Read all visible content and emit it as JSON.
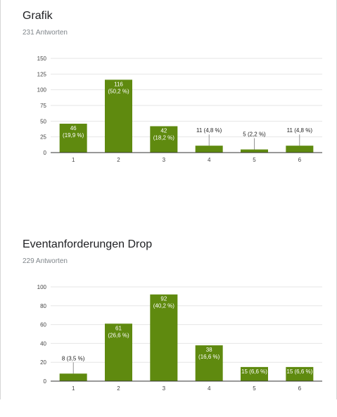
{
  "questions": [
    {
      "title": "Grafik",
      "responses": "231 Antworten"
    },
    {
      "title": "Eventanforderungen Drop",
      "responses": "229 Antworten"
    }
  ],
  "colors": {
    "bar": "#5f8a0f",
    "grid": "#e6e6e6",
    "axis": "#333333",
    "tick": "#444444",
    "label_inside": "#ffffff",
    "label_outside": "#222222"
  },
  "chart_data": [
    {
      "type": "bar",
      "title": "Grafik",
      "categories": [
        "1",
        "2",
        "3",
        "4",
        "5",
        "6"
      ],
      "values": [
        46,
        116,
        42,
        11,
        5,
        11
      ],
      "data_labels": [
        "46\n(19,9 %)",
        "116\n(50,2 %)",
        "42\n(18,2 %)",
        "11 (4,8 %)",
        "5 (2,2 %)",
        "11 (4,8 %)"
      ],
      "yticks": [
        0,
        25,
        50,
        75,
        100,
        125,
        150
      ],
      "ylim": [
        0,
        150
      ],
      "grid": true,
      "xlabel": "",
      "ylabel": ""
    },
    {
      "type": "bar",
      "title": "Eventanforderungen Drop",
      "categories": [
        "1",
        "2",
        "3",
        "4",
        "5",
        "6"
      ],
      "values": [
        8,
        61,
        92,
        38,
        15,
        15
      ],
      "data_labels": [
        "8 (3,5 %)",
        "61\n(26,6 %)",
        "92\n(40,2 %)",
        "38\n(16,6 %)",
        "15 (6,6 %)",
        "15 (6,6 %)"
      ],
      "yticks": [
        0,
        20,
        40,
        60,
        80,
        100
      ],
      "ylim": [
        0,
        100
      ],
      "grid": true,
      "xlabel": "",
      "ylabel": ""
    }
  ]
}
